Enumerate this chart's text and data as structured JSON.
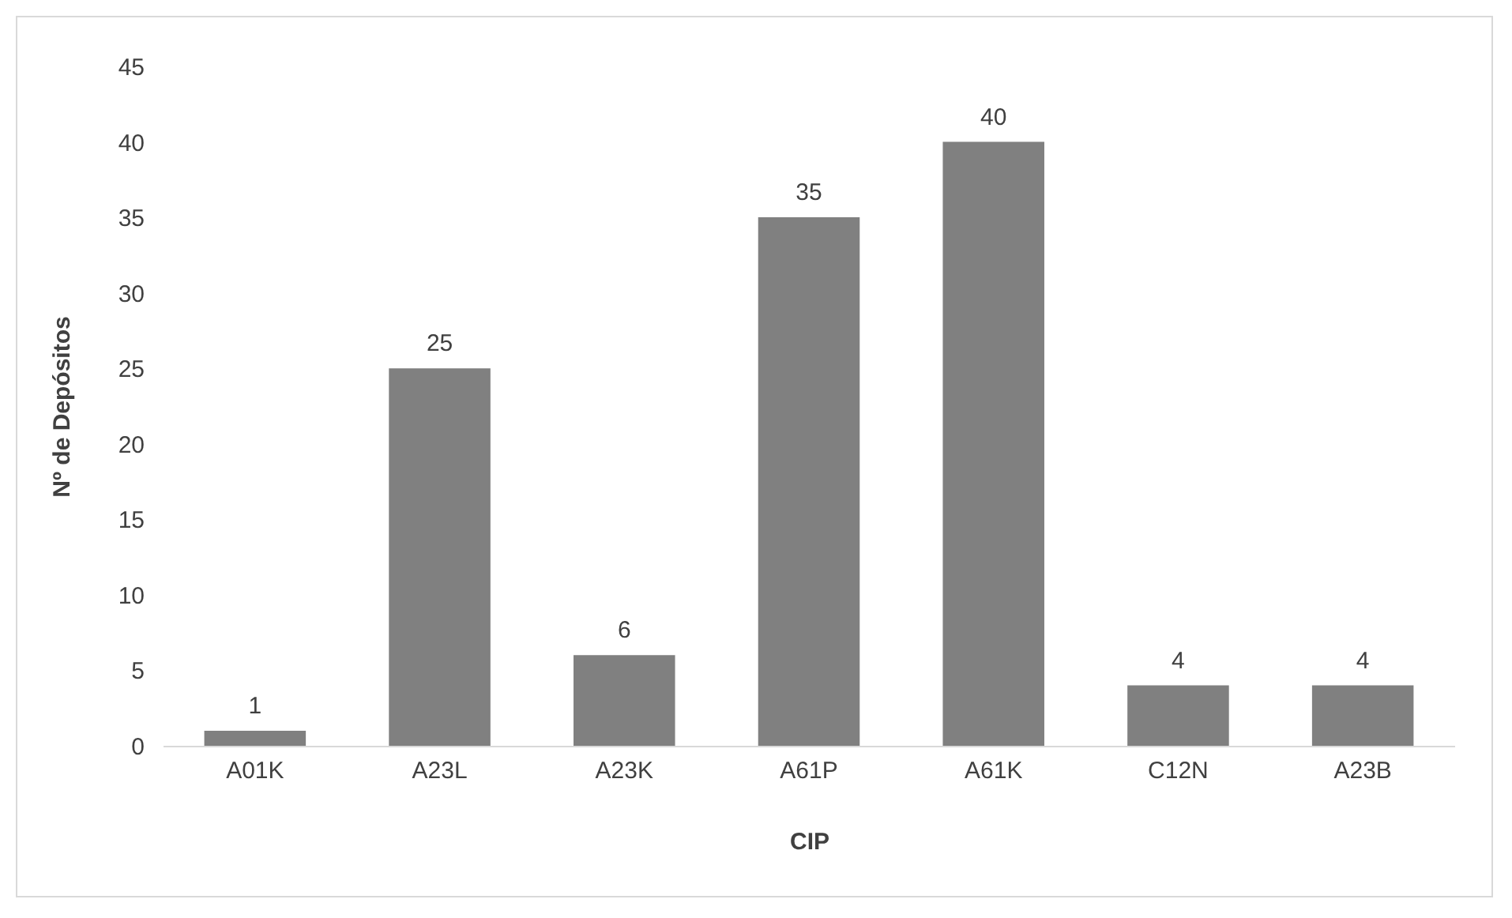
{
  "chart_data": {
    "type": "bar",
    "xlabel": "CIP",
    "ylabel": "Nº de Depósitos",
    "categories": [
      "A01K",
      "A23L",
      "A23K",
      "A61P",
      "A61K",
      "C12N",
      "A23B"
    ],
    "values": [
      1,
      25,
      6,
      35,
      40,
      4,
      4
    ],
    "color": "#808080",
    "ylim": [
      0,
      45
    ],
    "yticks": [
      0,
      5,
      10,
      15,
      20,
      25,
      30,
      35,
      40,
      45
    ],
    "grid": false,
    "data_labels": true
  }
}
